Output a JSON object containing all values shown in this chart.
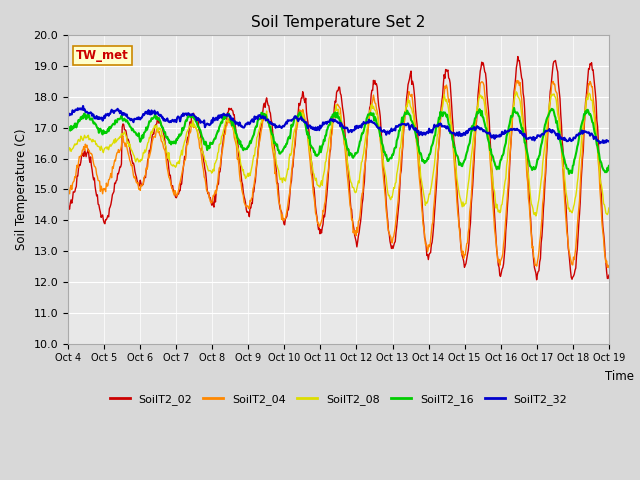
{
  "title": "Soil Temperature Set 2",
  "ylabel": "Soil Temperature (C)",
  "xlabel": "Time",
  "ylim": [
    10.0,
    20.0
  ],
  "yticks": [
    10.0,
    11.0,
    12.0,
    13.0,
    14.0,
    15.0,
    16.0,
    17.0,
    18.0,
    19.0,
    20.0
  ],
  "xlabels": [
    "Oct 4",
    "Oct 5",
    "Oct 6",
    "Oct 7",
    "Oct 8",
    "Oct 9",
    "Oct 10",
    "Oct 11",
    "Oct 12",
    "Oct 13",
    "Oct 14",
    "Oct 15",
    "Oct 16",
    "Oct 17",
    "Oct 18",
    "Oct 19"
  ],
  "annotation_text": "TW_met",
  "line_colors": {
    "SoilT2_02": "#cc0000",
    "SoilT2_04": "#ff8800",
    "SoilT2_08": "#dddd00",
    "SoilT2_16": "#00cc00",
    "SoilT2_32": "#0000cc"
  },
  "line_lw": {
    "SoilT2_02": 1.0,
    "SoilT2_04": 1.0,
    "SoilT2_08": 1.0,
    "SoilT2_16": 1.5,
    "SoilT2_32": 1.5
  },
  "fig_bg": "#d8d8d8",
  "plot_bg": "#e8e8e8",
  "grid_color": "#ffffff",
  "legend_labels": [
    "SoilT2_02",
    "SoilT2_04",
    "SoilT2_08",
    "SoilT2_16",
    "SoilT2_32"
  ],
  "legend_colors": [
    "#cc0000",
    "#ff8800",
    "#dddd00",
    "#00cc00",
    "#0000cc"
  ],
  "n_days": 15,
  "pts_per_day": 48
}
